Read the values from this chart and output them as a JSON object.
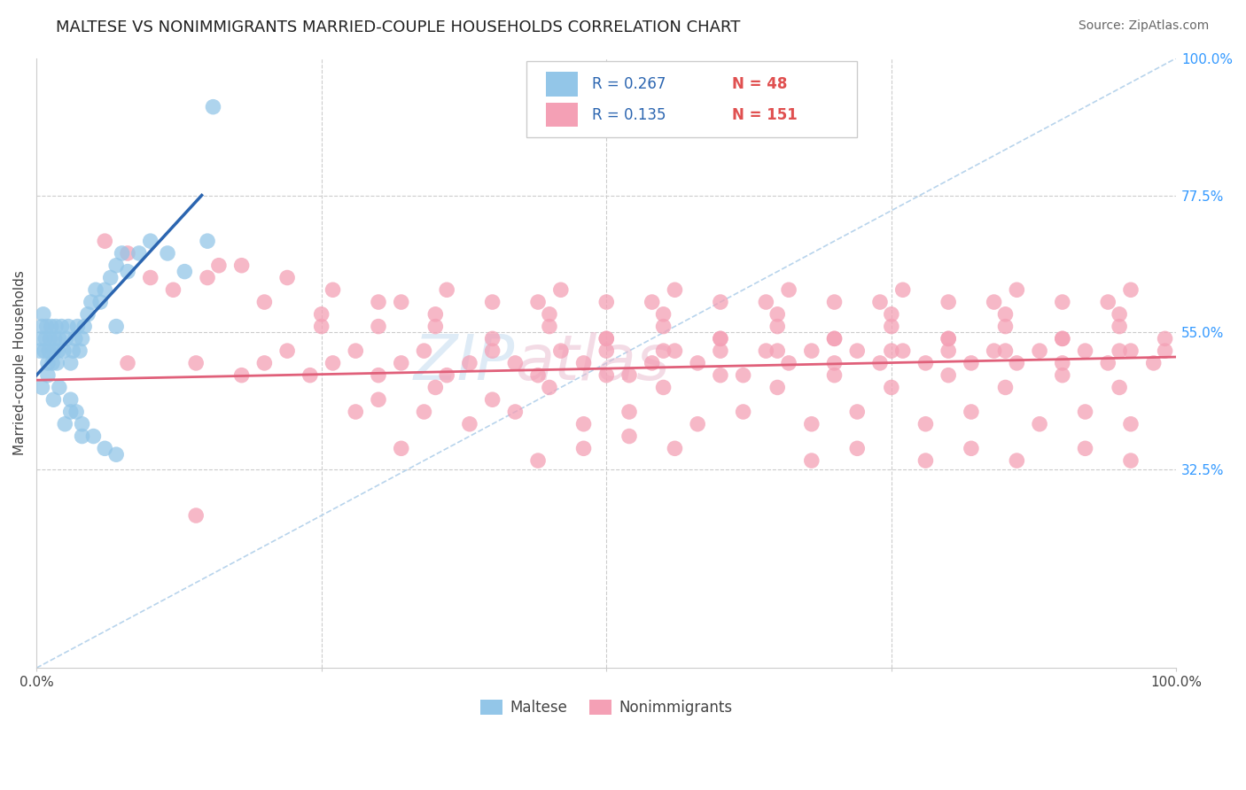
{
  "title": "MALTESE VS NONIMMIGRANTS MARRIED-COUPLE HOUSEHOLDS CORRELATION CHART",
  "source": "Source: ZipAtlas.com",
  "ylabel": "Married-couple Households",
  "ytick_labels_right": [
    "100.0%",
    "77.5%",
    "55.0%",
    "32.5%"
  ],
  "ytick_positions_right": [
    1.0,
    0.775,
    0.55,
    0.325
  ],
  "legend_r1": "R = 0.267",
  "legend_n1": "N = 48",
  "legend_r2": "R = 0.135",
  "legend_n2": "N = 151",
  "color_blue": "#93c6e8",
  "color_blue_line": "#2b65b0",
  "color_pink": "#f4a0b5",
  "color_pink_line": "#e0607a",
  "color_diagonal": "#b8d4ec",
  "title_fontsize": 13,
  "blue_x": [
    0.003,
    0.004,
    0.005,
    0.006,
    0.007,
    0.008,
    0.009,
    0.01,
    0.011,
    0.012,
    0.013,
    0.014,
    0.015,
    0.016,
    0.017,
    0.018,
    0.019,
    0.02,
    0.022,
    0.024,
    0.026,
    0.028,
    0.03,
    0.032,
    0.034,
    0.036,
    0.038,
    0.04,
    0.042,
    0.045,
    0.048,
    0.052,
    0.056,
    0.06,
    0.065,
    0.07,
    0.075,
    0.08,
    0.09,
    0.1,
    0.115,
    0.13,
    0.15,
    0.07,
    0.03,
    0.025,
    0.04,
    0.155
  ],
  "blue_y": [
    0.52,
    0.54,
    0.56,
    0.58,
    0.52,
    0.54,
    0.56,
    0.5,
    0.52,
    0.54,
    0.56,
    0.5,
    0.52,
    0.54,
    0.56,
    0.5,
    0.52,
    0.54,
    0.56,
    0.52,
    0.54,
    0.56,
    0.5,
    0.52,
    0.54,
    0.56,
    0.52,
    0.54,
    0.56,
    0.58,
    0.6,
    0.62,
    0.6,
    0.62,
    0.64,
    0.66,
    0.68,
    0.65,
    0.68,
    0.7,
    0.68,
    0.65,
    0.7,
    0.56,
    0.42,
    0.4,
    0.38,
    0.92
  ],
  "blue_x_extra": [
    0.005,
    0.01,
    0.015,
    0.02,
    0.03,
    0.035,
    0.04,
    0.05,
    0.06,
    0.07
  ],
  "blue_y_extra": [
    0.46,
    0.48,
    0.44,
    0.46,
    0.44,
    0.42,
    0.4,
    0.38,
    0.36,
    0.35
  ],
  "pink_x": [
    0.08,
    0.14,
    0.18,
    0.2,
    0.22,
    0.24,
    0.26,
    0.28,
    0.3,
    0.32,
    0.34,
    0.36,
    0.38,
    0.4,
    0.42,
    0.44,
    0.46,
    0.48,
    0.5,
    0.52,
    0.54,
    0.56,
    0.58,
    0.6,
    0.62,
    0.64,
    0.66,
    0.68,
    0.7,
    0.72,
    0.74,
    0.76,
    0.78,
    0.8,
    0.82,
    0.84,
    0.86,
    0.88,
    0.9,
    0.92,
    0.94,
    0.96,
    0.98,
    0.99,
    0.5,
    0.55,
    0.6,
    0.65,
    0.7,
    0.75,
    0.8,
    0.85,
    0.9,
    0.95,
    0.3,
    0.35,
    0.4,
    0.45,
    0.5,
    0.55,
    0.6,
    0.65,
    0.7,
    0.75,
    0.8,
    0.85,
    0.9,
    0.95,
    0.25,
    0.3,
    0.35,
    0.4,
    0.45,
    0.5,
    0.55,
    0.6,
    0.65,
    0.7,
    0.75,
    0.8,
    0.85,
    0.9,
    0.95,
    0.99,
    0.2,
    0.25,
    0.3,
    0.35,
    0.4,
    0.45,
    0.5,
    0.55,
    0.6,
    0.65,
    0.7,
    0.75,
    0.8,
    0.85,
    0.9,
    0.95,
    0.28,
    0.34,
    0.38,
    0.42,
    0.48,
    0.52,
    0.58,
    0.62,
    0.68,
    0.72,
    0.78,
    0.82,
    0.88,
    0.92,
    0.96,
    0.26,
    0.32,
    0.36,
    0.44,
    0.46,
    0.54,
    0.56,
    0.64,
    0.66,
    0.74,
    0.76,
    0.84,
    0.86,
    0.94,
    0.96,
    0.08,
    0.12,
    0.16,
    0.18,
    0.22,
    0.06,
    0.1,
    0.15,
    0.32,
    0.44,
    0.48,
    0.52,
    0.56,
    0.68,
    0.72,
    0.78,
    0.82,
    0.86,
    0.92,
    0.96,
    0.14
  ],
  "pink_y": [
    0.5,
    0.5,
    0.48,
    0.5,
    0.52,
    0.48,
    0.5,
    0.52,
    0.48,
    0.5,
    0.52,
    0.48,
    0.5,
    0.52,
    0.5,
    0.48,
    0.52,
    0.5,
    0.52,
    0.48,
    0.5,
    0.52,
    0.5,
    0.52,
    0.48,
    0.52,
    0.5,
    0.52,
    0.5,
    0.52,
    0.5,
    0.52,
    0.5,
    0.52,
    0.5,
    0.52,
    0.5,
    0.52,
    0.5,
    0.52,
    0.5,
    0.52,
    0.5,
    0.52,
    0.54,
    0.52,
    0.54,
    0.52,
    0.54,
    0.52,
    0.54,
    0.52,
    0.54,
    0.52,
    0.44,
    0.46,
    0.44,
    0.46,
    0.48,
    0.46,
    0.48,
    0.46,
    0.48,
    0.46,
    0.48,
    0.46,
    0.48,
    0.46,
    0.56,
    0.56,
    0.56,
    0.54,
    0.56,
    0.54,
    0.56,
    0.54,
    0.56,
    0.54,
    0.56,
    0.54,
    0.56,
    0.54,
    0.56,
    0.54,
    0.6,
    0.58,
    0.6,
    0.58,
    0.6,
    0.58,
    0.6,
    0.58,
    0.6,
    0.58,
    0.6,
    0.58,
    0.6,
    0.58,
    0.6,
    0.58,
    0.42,
    0.42,
    0.4,
    0.42,
    0.4,
    0.42,
    0.4,
    0.42,
    0.4,
    0.42,
    0.4,
    0.42,
    0.4,
    0.42,
    0.4,
    0.62,
    0.6,
    0.62,
    0.6,
    0.62,
    0.6,
    0.62,
    0.6,
    0.62,
    0.6,
    0.62,
    0.6,
    0.62,
    0.6,
    0.62,
    0.68,
    0.62,
    0.66,
    0.66,
    0.64,
    0.7,
    0.64,
    0.64,
    0.36,
    0.34,
    0.36,
    0.38,
    0.36,
    0.34,
    0.36,
    0.34,
    0.36,
    0.34,
    0.36,
    0.34,
    0.25
  ]
}
